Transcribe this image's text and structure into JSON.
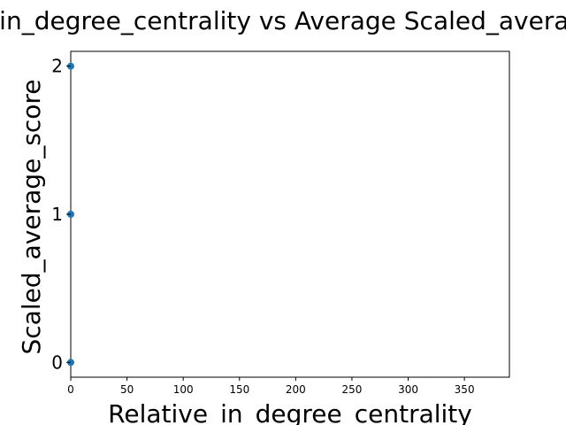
{
  "chart_data": {
    "type": "scatter",
    "title": "Relative_in_degree_centrality vs Average Scaled_average_score",
    "xlabel": "Relative_in_degree_centrality",
    "ylabel": "Scaled_average_score",
    "xlim": [
      0,
      390
    ],
    "ylim": [
      -0.1,
      2.1
    ],
    "x_ticks": [
      "0",
      "50",
      "100",
      "150",
      "200",
      "250",
      "300",
      "350"
    ],
    "y_ticks": [
      "0",
      "1",
      "2"
    ],
    "grid": false,
    "points": [
      {
        "x": 0,
        "y": 0
      },
      {
        "x": 0,
        "y": 1
      },
      {
        "x": 0,
        "y": 2
      }
    ],
    "marker_color": "#1f77b4"
  }
}
